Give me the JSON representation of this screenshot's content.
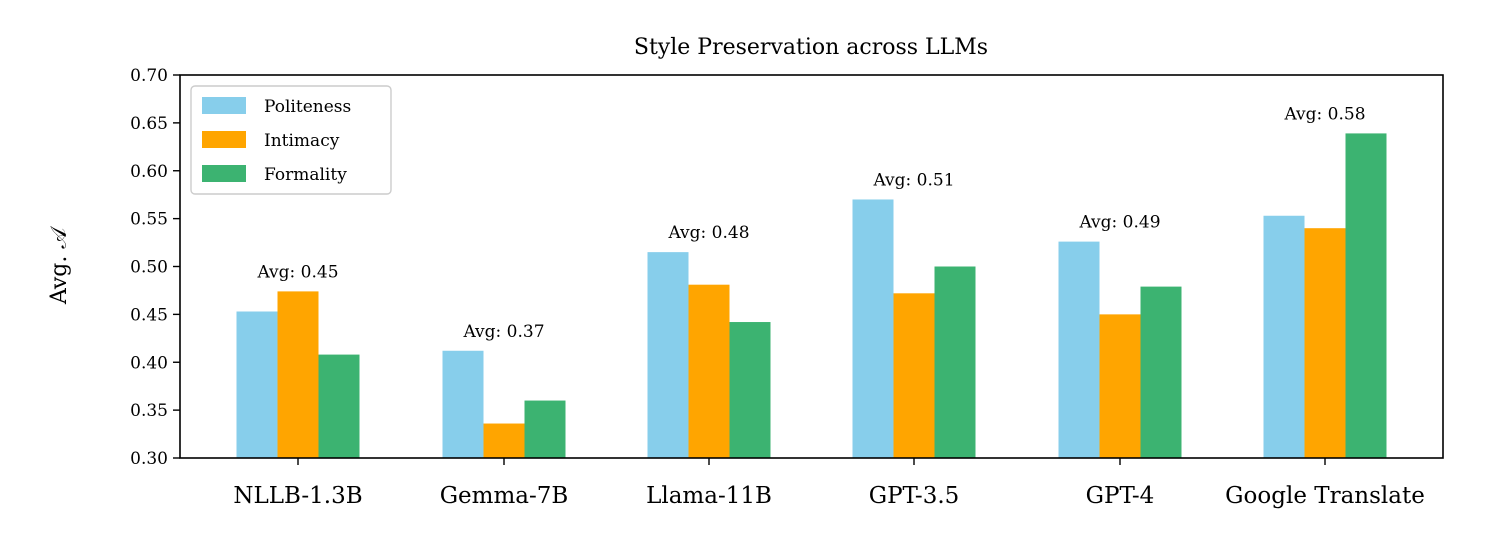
{
  "chart_data": {
    "type": "bar",
    "title": "Style Preservation across LLMs",
    "ylabel": "Avg. 𝒜",
    "xlabel": "",
    "ylim": [
      0.3,
      0.7
    ],
    "yticks": [
      "0.30",
      "0.35",
      "0.40",
      "0.45",
      "0.50",
      "0.55",
      "0.60",
      "0.65",
      "0.70"
    ],
    "categories": [
      "NLLB-1.3B",
      "Gemma-7B",
      "Llama-11B",
      "GPT-3.5",
      "GPT-4",
      "Google Translate"
    ],
    "series": [
      {
        "name": "Politeness",
        "color": "#87ceeb",
        "values": [
          0.453,
          0.412,
          0.515,
          0.57,
          0.526,
          0.553
        ]
      },
      {
        "name": "Intimacy",
        "color": "#ffa500",
        "values": [
          0.474,
          0.336,
          0.481,
          0.472,
          0.45,
          0.54
        ]
      },
      {
        "name": "Formality",
        "color": "#3cb371",
        "values": [
          0.408,
          0.36,
          0.442,
          0.5,
          0.479,
          0.639
        ]
      }
    ],
    "annotations": [
      "Avg: 0.45",
      "Avg: 0.37",
      "Avg: 0.48",
      "Avg: 0.51",
      "Avg: 0.49",
      "Avg: 0.58"
    ],
    "legend_position": "top-left",
    "grid": false
  }
}
